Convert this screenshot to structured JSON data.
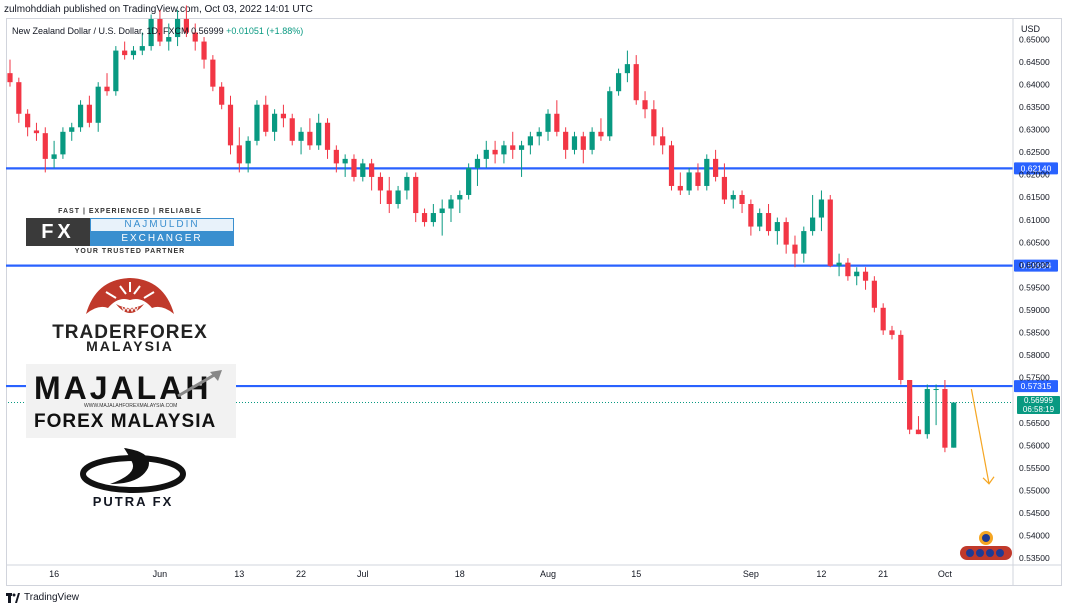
{
  "header": {
    "publish_line": "zulmohddiah published on TradingView.com, Oct 03, 2022 14:01 UTC",
    "legend_symbol": "New Zealand Dollar / U.S. Dollar, 1D, FXCM",
    "legend_ohlc": "0.56999",
    "legend_change": "+0.01051 (+1.88%)"
  },
  "footer": {
    "brand": "TradingView"
  },
  "colors": {
    "up": "#089981",
    "down": "#f23645",
    "level_line": "#2962ff",
    "axis_text": "#131722",
    "arrow": "#f5a623",
    "price_tag": "#089981"
  },
  "price_tags": {
    "current_price": "0.56999",
    "countdown": "06:58:19"
  },
  "logos": {
    "fx": {
      "tagline_top": "FAST | EXPERIENCED | RELIABLE",
      "box": "FX",
      "name": "NAJMULDIN",
      "sub": "EXCHANGER",
      "tagline_bottom": "YOUR TRUSTED PARTNER"
    },
    "traderforex": {
      "line1": "TRADERFOREX",
      "line2": "MALAYSIA"
    },
    "majalah": {
      "line1": "MAJALAH",
      "url": "WWW.MAJALAHFOREXMALAYSIA.COM",
      "line2": "FOREX MALAYSIA"
    },
    "putra": {
      "name": "PUTRA FX"
    }
  },
  "chart_data": {
    "type": "candlestick",
    "symbol": "NZDUSD",
    "interval": "1D",
    "y_axis_label": "USD",
    "ylim": [
      0.5335,
      0.6545
    ],
    "y_ticks": [
      0.65,
      0.645,
      0.64,
      0.635,
      0.63,
      0.625,
      0.62,
      0.615,
      0.61,
      0.605,
      0.6,
      0.595,
      0.59,
      0.585,
      0.58,
      0.575,
      0.57,
      0.565,
      0.56,
      0.555,
      0.55,
      0.545,
      0.54,
      0.535
    ],
    "x_labels": [
      {
        "label": "16",
        "index": 5
      },
      {
        "label": "Jun",
        "index": 17
      },
      {
        "label": "13",
        "index": 26
      },
      {
        "label": "22",
        "index": 33
      },
      {
        "label": "Jul",
        "index": 40
      },
      {
        "label": "18",
        "index": 51
      },
      {
        "label": "Aug",
        "index": 61
      },
      {
        "label": "15",
        "index": 71
      },
      {
        "label": "Sep",
        "index": 84
      },
      {
        "label": "12",
        "index": 92
      },
      {
        "label": "21",
        "index": 99
      },
      {
        "label": "Oct",
        "index": 106
      }
    ],
    "horizontal_levels": [
      0.6214,
      0.59984,
      0.57315
    ],
    "level_labels": [
      "0.62140",
      "0.59984",
      "0.57315"
    ],
    "forecast_arrow": {
      "from_index": 109,
      "from_price": 0.5725,
      "to_index": 111,
      "to_price": 0.5515
    },
    "candles": [
      {
        "o": 0.6425,
        "h": 0.6455,
        "l": 0.6395,
        "c": 0.6405
      },
      {
        "o": 0.6405,
        "h": 0.6415,
        "l": 0.6315,
        "c": 0.6335
      },
      {
        "o": 0.6335,
        "h": 0.6345,
        "l": 0.6285,
        "c": 0.6305
      },
      {
        "o": 0.6298,
        "h": 0.6315,
        "l": 0.6275,
        "c": 0.6292
      },
      {
        "o": 0.6292,
        "h": 0.6305,
        "l": 0.6205,
        "c": 0.6235
      },
      {
        "o": 0.6235,
        "h": 0.6275,
        "l": 0.6215,
        "c": 0.6245
      },
      {
        "o": 0.6245,
        "h": 0.6305,
        "l": 0.6235,
        "c": 0.6295
      },
      {
        "o": 0.6295,
        "h": 0.6315,
        "l": 0.6275,
        "c": 0.6305
      },
      {
        "o": 0.6305,
        "h": 0.6365,
        "l": 0.6295,
        "c": 0.6355
      },
      {
        "o": 0.6355,
        "h": 0.6375,
        "l": 0.6305,
        "c": 0.6315
      },
      {
        "o": 0.6315,
        "h": 0.6405,
        "l": 0.6295,
        "c": 0.6395
      },
      {
        "o": 0.6395,
        "h": 0.6425,
        "l": 0.6375,
        "c": 0.6385
      },
      {
        "o": 0.6385,
        "h": 0.6485,
        "l": 0.6375,
        "c": 0.6475
      },
      {
        "o": 0.6475,
        "h": 0.6495,
        "l": 0.6455,
        "c": 0.6465
      },
      {
        "o": 0.6465,
        "h": 0.6485,
        "l": 0.6455,
        "c": 0.6475
      },
      {
        "o": 0.6475,
        "h": 0.6515,
        "l": 0.6465,
        "c": 0.6485
      },
      {
        "o": 0.6485,
        "h": 0.6555,
        "l": 0.6475,
        "c": 0.6545
      },
      {
        "o": 0.6545,
        "h": 0.6565,
        "l": 0.6485,
        "c": 0.6495
      },
      {
        "o": 0.6495,
        "h": 0.6535,
        "l": 0.6475,
        "c": 0.6505
      },
      {
        "o": 0.6505,
        "h": 0.6565,
        "l": 0.6485,
        "c": 0.6545
      },
      {
        "o": 0.6545,
        "h": 0.6575,
        "l": 0.6505,
        "c": 0.6515
      },
      {
        "o": 0.6515,
        "h": 0.6535,
        "l": 0.6475,
        "c": 0.6495
      },
      {
        "o": 0.6495,
        "h": 0.6505,
        "l": 0.6435,
        "c": 0.6455
      },
      {
        "o": 0.6455,
        "h": 0.6465,
        "l": 0.6385,
        "c": 0.6395
      },
      {
        "o": 0.6395,
        "h": 0.6405,
        "l": 0.6345,
        "c": 0.6355
      },
      {
        "o": 0.6355,
        "h": 0.6375,
        "l": 0.6245,
        "c": 0.6265
      },
      {
        "o": 0.6265,
        "h": 0.6305,
        "l": 0.6205,
        "c": 0.6225
      },
      {
        "o": 0.6225,
        "h": 0.6285,
        "l": 0.6205,
        "c": 0.6275
      },
      {
        "o": 0.6275,
        "h": 0.6365,
        "l": 0.6265,
        "c": 0.6355
      },
      {
        "o": 0.6355,
        "h": 0.6375,
        "l": 0.6285,
        "c": 0.6295
      },
      {
        "o": 0.6295,
        "h": 0.6345,
        "l": 0.6275,
        "c": 0.6335
      },
      {
        "o": 0.6335,
        "h": 0.6355,
        "l": 0.6305,
        "c": 0.6325
      },
      {
        "o": 0.6325,
        "h": 0.6335,
        "l": 0.6265,
        "c": 0.6275
      },
      {
        "o": 0.6275,
        "h": 0.6305,
        "l": 0.6245,
        "c": 0.6295
      },
      {
        "o": 0.6295,
        "h": 0.6325,
        "l": 0.6255,
        "c": 0.6265
      },
      {
        "o": 0.6265,
        "h": 0.6335,
        "l": 0.6255,
        "c": 0.6315
      },
      {
        "o": 0.6315,
        "h": 0.6325,
        "l": 0.6235,
        "c": 0.6255
      },
      {
        "o": 0.6255,
        "h": 0.6265,
        "l": 0.6205,
        "c": 0.6225
      },
      {
        "o": 0.6225,
        "h": 0.6245,
        "l": 0.6195,
        "c": 0.6235
      },
      {
        "o": 0.6235,
        "h": 0.6245,
        "l": 0.6185,
        "c": 0.6195
      },
      {
        "o": 0.6195,
        "h": 0.6235,
        "l": 0.6185,
        "c": 0.6225
      },
      {
        "o": 0.6225,
        "h": 0.6235,
        "l": 0.6165,
        "c": 0.6195
      },
      {
        "o": 0.6195,
        "h": 0.6205,
        "l": 0.6135,
        "c": 0.6165
      },
      {
        "o": 0.6165,
        "h": 0.6195,
        "l": 0.6115,
        "c": 0.6135
      },
      {
        "o": 0.6135,
        "h": 0.6175,
        "l": 0.6125,
        "c": 0.6165
      },
      {
        "o": 0.6165,
        "h": 0.6205,
        "l": 0.6145,
        "c": 0.6195
      },
      {
        "o": 0.6195,
        "h": 0.6205,
        "l": 0.6095,
        "c": 0.6115
      },
      {
        "o": 0.6115,
        "h": 0.6125,
        "l": 0.6085,
        "c": 0.6095
      },
      {
        "o": 0.6095,
        "h": 0.6135,
        "l": 0.6085,
        "c": 0.6115
      },
      {
        "o": 0.6115,
        "h": 0.6145,
        "l": 0.6065,
        "c": 0.6125
      },
      {
        "o": 0.6125,
        "h": 0.6155,
        "l": 0.6095,
        "c": 0.6145
      },
      {
        "o": 0.6145,
        "h": 0.6165,
        "l": 0.6115,
        "c": 0.6155
      },
      {
        "o": 0.6155,
        "h": 0.6225,
        "l": 0.6145,
        "c": 0.6215
      },
      {
        "o": 0.6215,
        "h": 0.6245,
        "l": 0.6175,
        "c": 0.6235
      },
      {
        "o": 0.6235,
        "h": 0.6275,
        "l": 0.6215,
        "c": 0.6255
      },
      {
        "o": 0.6255,
        "h": 0.6275,
        "l": 0.6225,
        "c": 0.6245
      },
      {
        "o": 0.6245,
        "h": 0.6275,
        "l": 0.6225,
        "c": 0.6265
      },
      {
        "o": 0.6265,
        "h": 0.6295,
        "l": 0.6235,
        "c": 0.6255
      },
      {
        "o": 0.6255,
        "h": 0.6275,
        "l": 0.6195,
        "c": 0.6265
      },
      {
        "o": 0.6265,
        "h": 0.6295,
        "l": 0.6245,
        "c": 0.6285
      },
      {
        "o": 0.6285,
        "h": 0.6305,
        "l": 0.6265,
        "c": 0.6295
      },
      {
        "o": 0.6295,
        "h": 0.6345,
        "l": 0.6275,
        "c": 0.6335
      },
      {
        "o": 0.6335,
        "h": 0.6365,
        "l": 0.6285,
        "c": 0.6295
      },
      {
        "o": 0.6295,
        "h": 0.6305,
        "l": 0.6235,
        "c": 0.6255
      },
      {
        "o": 0.6255,
        "h": 0.6295,
        "l": 0.6245,
        "c": 0.6285
      },
      {
        "o": 0.6285,
        "h": 0.6295,
        "l": 0.6225,
        "c": 0.6255
      },
      {
        "o": 0.6255,
        "h": 0.6305,
        "l": 0.6245,
        "c": 0.6295
      },
      {
        "o": 0.6295,
        "h": 0.6325,
        "l": 0.6275,
        "c": 0.6285
      },
      {
        "o": 0.6285,
        "h": 0.6395,
        "l": 0.6275,
        "c": 0.6385
      },
      {
        "o": 0.6385,
        "h": 0.6435,
        "l": 0.6375,
        "c": 0.6425
      },
      {
        "o": 0.6425,
        "h": 0.6475,
        "l": 0.6405,
        "c": 0.6445
      },
      {
        "o": 0.6445,
        "h": 0.6465,
        "l": 0.6355,
        "c": 0.6365
      },
      {
        "o": 0.6365,
        "h": 0.6385,
        "l": 0.6325,
        "c": 0.6345
      },
      {
        "o": 0.6345,
        "h": 0.6365,
        "l": 0.6265,
        "c": 0.6285
      },
      {
        "o": 0.6285,
        "h": 0.6305,
        "l": 0.6245,
        "c": 0.6265
      },
      {
        "o": 0.6265,
        "h": 0.6275,
        "l": 0.6165,
        "c": 0.6175
      },
      {
        "o": 0.6175,
        "h": 0.6205,
        "l": 0.6155,
        "c": 0.6165
      },
      {
        "o": 0.6165,
        "h": 0.6215,
        "l": 0.6155,
        "c": 0.6205
      },
      {
        "o": 0.6205,
        "h": 0.6225,
        "l": 0.6165,
        "c": 0.6175
      },
      {
        "o": 0.6175,
        "h": 0.6245,
        "l": 0.6165,
        "c": 0.6235
      },
      {
        "o": 0.6235,
        "h": 0.6255,
        "l": 0.6185,
        "c": 0.6195
      },
      {
        "o": 0.6195,
        "h": 0.6225,
        "l": 0.6135,
        "c": 0.6145
      },
      {
        "o": 0.6145,
        "h": 0.6165,
        "l": 0.6125,
        "c": 0.6155
      },
      {
        "o": 0.6155,
        "h": 0.6165,
        "l": 0.6115,
        "c": 0.6135
      },
      {
        "o": 0.6135,
        "h": 0.6145,
        "l": 0.6065,
        "c": 0.6085
      },
      {
        "o": 0.6085,
        "h": 0.6125,
        "l": 0.6075,
        "c": 0.6115
      },
      {
        "o": 0.6115,
        "h": 0.6135,
        "l": 0.6065,
        "c": 0.6075
      },
      {
        "o": 0.6075,
        "h": 0.6105,
        "l": 0.6045,
        "c": 0.6095
      },
      {
        "o": 0.6095,
        "h": 0.6105,
        "l": 0.6025,
        "c": 0.6045
      },
      {
        "o": 0.6045,
        "h": 0.6065,
        "l": 0.5995,
        "c": 0.6025
      },
      {
        "o": 0.6025,
        "h": 0.6085,
        "l": 0.6005,
        "c": 0.6075
      },
      {
        "o": 0.6075,
        "h": 0.6155,
        "l": 0.6065,
        "c": 0.6105
      },
      {
        "o": 0.6105,
        "h": 0.6165,
        "l": 0.6075,
        "c": 0.6145
      },
      {
        "o": 0.6145,
        "h": 0.6155,
        "l": 0.5995,
        "c": 0.5998
      },
      {
        "o": 0.5998,
        "h": 0.6025,
        "l": 0.5975,
        "c": 0.6005
      },
      {
        "o": 0.6005,
        "h": 0.6015,
        "l": 0.5965,
        "c": 0.5975
      },
      {
        "o": 0.5975,
        "h": 0.5995,
        "l": 0.5955,
        "c": 0.5985
      },
      {
        "o": 0.5985,
        "h": 0.5995,
        "l": 0.5945,
        "c": 0.5965
      },
      {
        "o": 0.5965,
        "h": 0.5975,
        "l": 0.5895,
        "c": 0.5905
      },
      {
        "o": 0.5905,
        "h": 0.5915,
        "l": 0.5845,
        "c": 0.5855
      },
      {
        "o": 0.5855,
        "h": 0.5865,
        "l": 0.5835,
        "c": 0.5845
      },
      {
        "o": 0.5845,
        "h": 0.5855,
        "l": 0.5735,
        "c": 0.5745
      },
      {
        "o": 0.5745,
        "h": 0.5745,
        "l": 0.5625,
        "c": 0.5635
      },
      {
        "o": 0.5635,
        "h": 0.5665,
        "l": 0.5625,
        "c": 0.5625
      },
      {
        "o": 0.5625,
        "h": 0.5735,
        "l": 0.5615,
        "c": 0.5725
      },
      {
        "o": 0.5725,
        "h": 0.5735,
        "l": 0.5645,
        "c": 0.5725
      },
      {
        "o": 0.5725,
        "h": 0.5745,
        "l": 0.5585,
        "c": 0.5595
      },
      {
        "o": 0.5595,
        "h": 0.5695,
        "l": 0.5595,
        "c": 0.5695
      }
    ]
  }
}
